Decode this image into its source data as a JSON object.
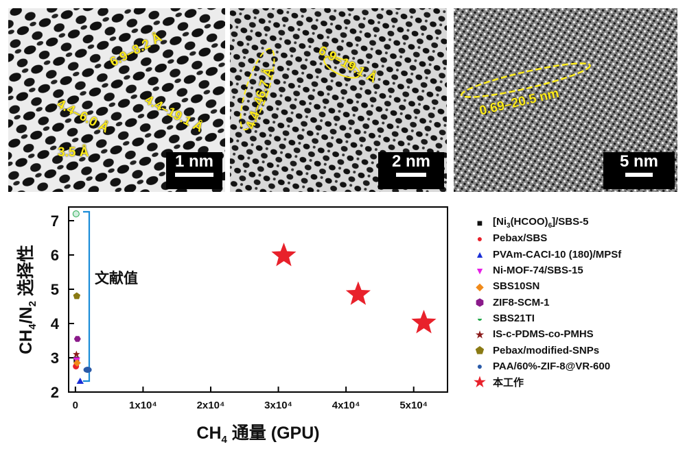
{
  "panels": [
    {
      "scalebar": "1 nm",
      "annotations": [
        "6.9–8.2 Å",
        "4.4–6.0 Å",
        "4.4–19.1 Å",
        "3.5 Å"
      ]
    },
    {
      "scalebar": "2 nm",
      "annotations": [
        "4.4–46.7 Å",
        "6.9–19.1 Å"
      ]
    },
    {
      "scalebar": "5 nm",
      "annotations": [
        "0.69–20.5 nm"
      ]
    }
  ],
  "chart_data": {
    "type": "scatter",
    "xlabel": "CH4 通量 (GPU)",
    "ylabel": "CH4/N2 选择性",
    "xlim": [
      -1000,
      55000
    ],
    "ylim": [
      2,
      7.4
    ],
    "xticks": [
      0,
      10000,
      20000,
      30000,
      40000,
      50000
    ],
    "xtick_labels": [
      "0",
      "1x10⁴",
      "2x10⁴",
      "3x10⁴",
      "4x10⁴",
      "5x10⁴"
    ],
    "yticks": [
      2,
      3,
      4,
      5,
      6,
      7
    ],
    "annotation": "文献值",
    "series": [
      {
        "name": "[Ni3(HCOO)6]/SBS-5",
        "marker": "square",
        "color": "#111111",
        "points": [
          [
            150,
            2.95
          ]
        ]
      },
      {
        "name": "Pebax/SBS",
        "marker": "circle",
        "color": "#e8212b",
        "points": [
          [
            80,
            2.75
          ]
        ]
      },
      {
        "name": "PVAm-CACI-10 (180)/MPSf",
        "marker": "triangle",
        "color": "#1a2fd6",
        "points": [
          [
            700,
            2.3
          ]
        ]
      },
      {
        "name": "Ni-MOF-74/SBS-15",
        "marker": "triangle-down",
        "color": "#e61ee6",
        "points": [
          [
            200,
            2.95
          ]
        ]
      },
      {
        "name": "SBS10SN",
        "marker": "diamond",
        "color": "#f08a1a",
        "points": [
          [
            250,
            2.85
          ]
        ]
      },
      {
        "name": "ZIF8-SCM-1",
        "marker": "hexagon",
        "color": "#8a1a8a",
        "points": [
          [
            300,
            3.55
          ]
        ]
      },
      {
        "name": "SBS21TI",
        "marker": "half-circle",
        "color": "#22a84a",
        "points": [
          [
            100,
            7.2
          ]
        ]
      },
      {
        "name": "IS-c-PDMS-co-PMHS",
        "marker": "star-small",
        "color": "#8a1a1a",
        "points": [
          [
            150,
            3.1
          ]
        ]
      },
      {
        "name": "Pebax/modified-SNPs",
        "marker": "pentagon",
        "color": "#8a7a14",
        "points": [
          [
            200,
            4.8
          ]
        ]
      },
      {
        "name": "PAA/60%-ZIF-8@VR-600",
        "marker": "sphere",
        "color": "#2a5aa8",
        "points": [
          [
            1800,
            2.65
          ]
        ]
      },
      {
        "name": "本工作",
        "marker": "star",
        "color": "#e8212b",
        "points": [
          [
            30800,
            5.98
          ],
          [
            41800,
            4.85
          ],
          [
            51500,
            4.02
          ]
        ]
      }
    ]
  }
}
